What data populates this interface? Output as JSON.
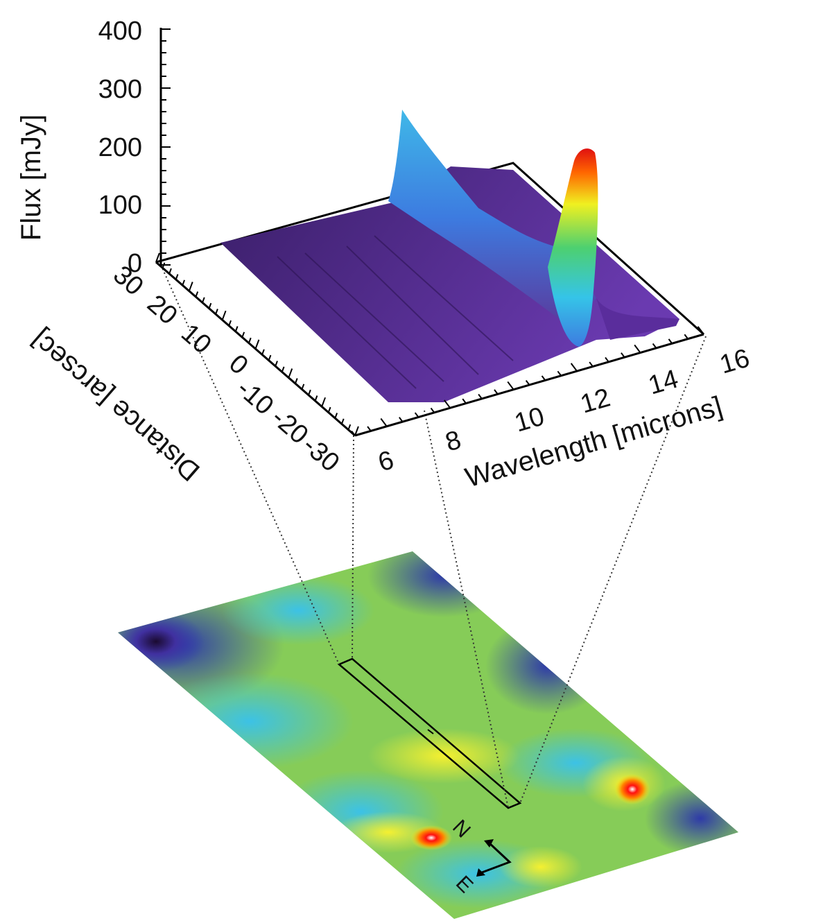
{
  "chart_data": [
    {
      "type": "surface",
      "axes": {
        "z": {
          "label": "Flux [mJy]",
          "range": [
            0,
            400
          ],
          "ticks": [
            "0",
            "100",
            "200",
            "300",
            "400"
          ]
        },
        "distance": {
          "label": "Distance [arcsec]",
          "range": [
            -30,
            30
          ],
          "ticks": [
            "30",
            "20",
            "10",
            "0",
            "-10",
            "-20",
            "-30"
          ]
        },
        "wavelength": {
          "label": "Wavelength [microns]",
          "range": [
            5,
            16
          ],
          "ticks": [
            "6",
            "8",
            "10",
            "12",
            "14",
            "16"
          ]
        }
      },
      "features": [
        {
          "wavelength": 7.2,
          "distance": 30,
          "flux": 250
        },
        {
          "wavelength": 13.3,
          "distance": 3,
          "flux": 200
        }
      ],
      "baseline_flux": 20,
      "colormap": [
        "#2a1040",
        "#5a2d9c",
        "#3d7be0",
        "#35c4e8",
        "#4dd070",
        "#f0f020",
        "#ff6600",
        "#e01010"
      ]
    },
    {
      "type": "heatmap",
      "compass": {
        "north": "N",
        "east": "E"
      },
      "colormap": [
        "#2a1040",
        "#3a3aa0",
        "#35c4e8",
        "#8dd050",
        "#f0f020",
        "#ff3300"
      ]
    }
  ]
}
